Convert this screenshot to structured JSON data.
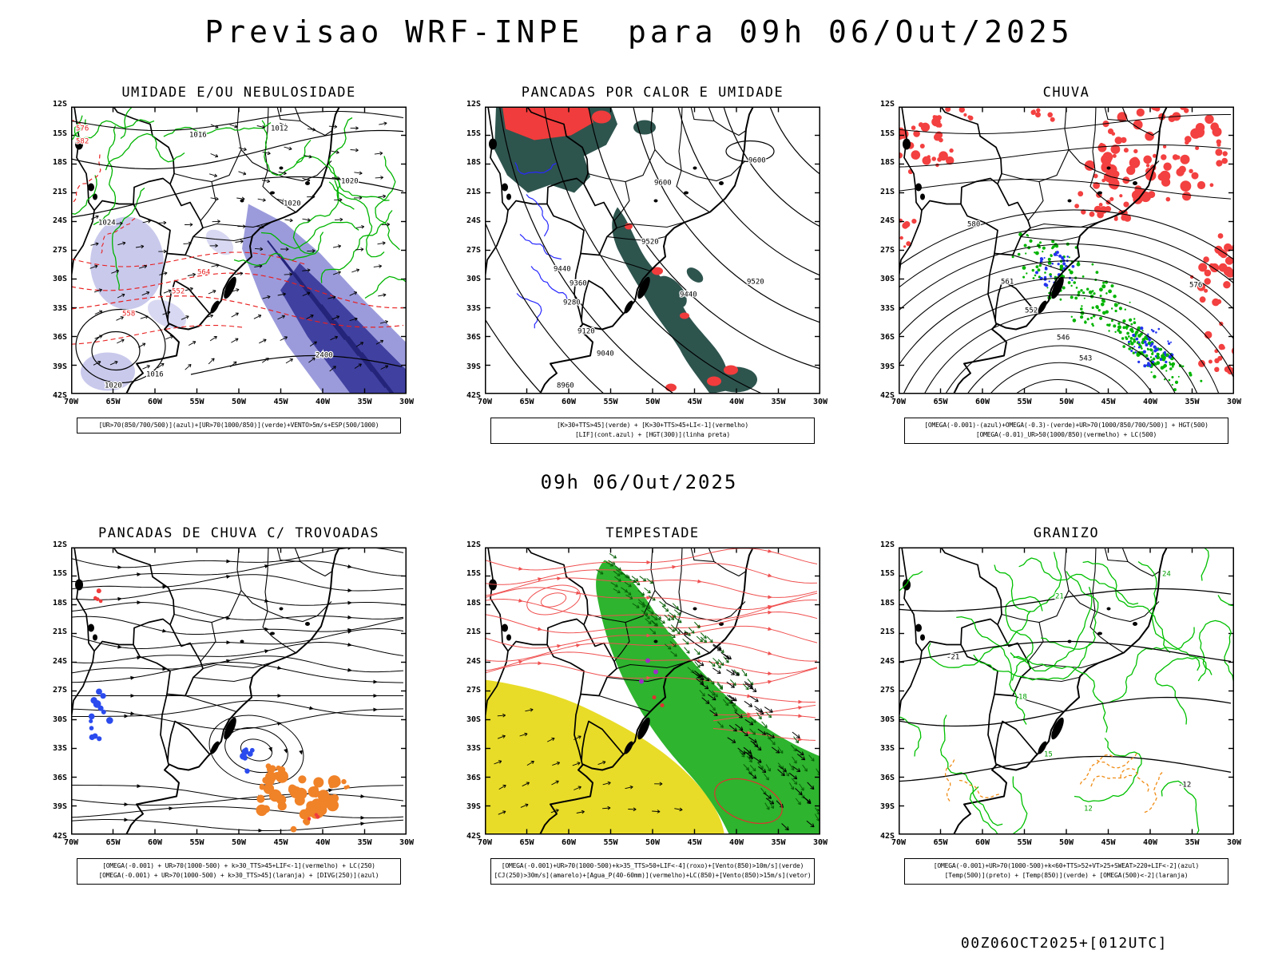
{
  "page": {
    "title": "Previsao WRF-INPE  para 09h 06/Out/2025",
    "subtitle": "09h 06/Out/2025",
    "footer": "00Z06OCT2025+[012UTC]"
  },
  "axis": {
    "lat_labels": [
      "12S",
      "15S",
      "18S",
      "21S",
      "24S",
      "27S",
      "30S",
      "33S",
      "36S",
      "39S",
      "42S"
    ],
    "lon_labels": [
      "70W",
      "65W",
      "60W",
      "55W",
      "50W",
      "45W",
      "40W",
      "35W",
      "30W"
    ]
  },
  "colors": {
    "humidity_shading_blue": "#9b9bdc",
    "humidity_core_navy": "#4040a0",
    "heat_shower_teal": "#2e544e",
    "alert_red": "#f03c3c",
    "rain_green": "#00b400",
    "thunder_orange": "#f08228",
    "divergence_blue": "#2b4bee",
    "jet_yellow": "#e8dc28",
    "storm_green": "#2eb42e",
    "hail_contour_green": "#00c000",
    "omega_orange_dashed": "#f08c14"
  },
  "panels": [
    {
      "id": "umidade",
      "title": "UMIDADE E/OU NEBULOSIDADE",
      "captions": [
        "[UR>70(850/700/500)](azul)+[UR>70(1000/850)](verde)+VENTO>5m/s+ESP(500/1000)"
      ],
      "contour_labels": [
        "576",
        "582",
        "1016",
        "1012",
        "1020",
        "1020",
        "1024",
        "552",
        "558",
        "564",
        "2400",
        "1016",
        "1020"
      ]
    },
    {
      "id": "pancadas-calor",
      "title": "PANCADAS POR CALOR E UMIDADE",
      "captions": [
        "[K>30+TTS>45](verde) + [K>30+TTS>45+LI<-1](vermelho)",
        "[LIF](cont.azul) + [HGT(300)](linha preta)"
      ],
      "contour_labels": [
        "9600",
        "9600",
        "9520",
        "9520",
        "9440",
        "9440",
        "9360",
        "9280",
        "9120",
        "9040",
        "8960"
      ]
    },
    {
      "id": "chuva",
      "title": "CHUVA",
      "captions": [
        "[OMEGA(-0.001)-(azul)+OMEGA(-0.3)-(verde)+UR>70(1000/850/700/500)] + HGT(500)",
        "[OMEGA(-0.01)_UR>50(1000/850)(vermelho) + LC(500)"
      ],
      "contour_labels": [
        "580",
        "576",
        "561",
        "552",
        "546",
        "543"
      ]
    },
    {
      "id": "trovoadas",
      "title": "PANCADAS DE CHUVA C/ TROVOADAS",
      "captions": [
        "[OMEGA(-0.001) + UR>70(1000-500) + k>30_TTS>45+LIF<-1](vermelho) + LC(250)",
        "[OMEGA(-0.001) + UR>70(1000-500) + k>30_TTS>45](laranja) + [DIVG(250)](azul)"
      ],
      "contour_labels": []
    },
    {
      "id": "tempestade",
      "title": "TEMPESTADE",
      "captions": [
        "[OMEGA(-0.001)+UR>70(1000-500)+k>35_TTS>50+LIF<-4](roxo)+[Vento(850)>10m/s](verde)",
        "[CJ(250)>30m/s](amarelo)+[Agua_P(40-60mm)](vermelho)+LC(850)+[Vento(850)>15m/s](vetor)"
      ],
      "contour_labels": []
    },
    {
      "id": "granizo",
      "title": "GRANIZO",
      "captions": [
        "[OMEGA(-0.001)+UR>70(1000-500)+k<60+TTS>52+VT>25+SWEAT>220+LIF<-2](azul)",
        "[Temp(500)](preto) + [Temp(850)](verde) + [OMEGA(500)<-2](laranja)"
      ],
      "contour_labels": [
        "24",
        "21",
        "18",
        "15",
        "12",
        "-21",
        "-12"
      ]
    }
  ]
}
